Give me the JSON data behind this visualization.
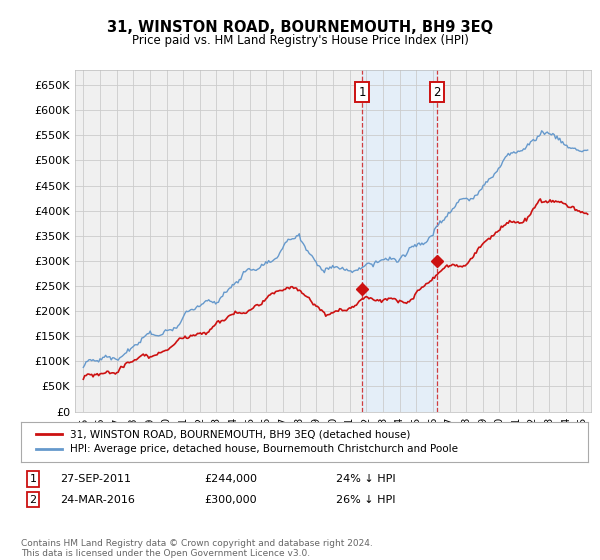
{
  "title": "31, WINSTON ROAD, BOURNEMOUTH, BH9 3EQ",
  "subtitle": "Price paid vs. HM Land Registry's House Price Index (HPI)",
  "ylabel_ticks": [
    "£0",
    "£50K",
    "£100K",
    "£150K",
    "£200K",
    "£250K",
    "£300K",
    "£350K",
    "£400K",
    "£450K",
    "£500K",
    "£550K",
    "£600K",
    "£650K"
  ],
  "ytick_values": [
    0,
    50000,
    100000,
    150000,
    200000,
    250000,
    300000,
    350000,
    400000,
    450000,
    500000,
    550000,
    600000,
    650000
  ],
  "ylim": [
    0,
    680000
  ],
  "xlim_start": 1994.5,
  "xlim_end": 2025.5,
  "hpi_color": "#6699cc",
  "price_color": "#cc1111",
  "sale1_date": 2011.75,
  "sale1_price": 244000,
  "sale1_label": "1",
  "sale2_date": 2016.25,
  "sale2_price": 300000,
  "sale2_label": "2",
  "legend_line1": "31, WINSTON ROAD, BOURNEMOUTH, BH9 3EQ (detached house)",
  "legend_line2": "HPI: Average price, detached house, Bournemouth Christchurch and Poole",
  "table_row1": [
    "1",
    "27-SEP-2011",
    "£244,000",
    "24% ↓ HPI"
  ],
  "table_row2": [
    "2",
    "24-MAR-2016",
    "£300,000",
    "26% ↓ HPI"
  ],
  "footnote": "Contains HM Land Registry data © Crown copyright and database right 2024.\nThis data is licensed under the Open Government Licence v3.0.",
  "background_color": "#ffffff",
  "plot_bg_color": "#f0f0f0",
  "grid_color": "#cccccc",
  "shade_color": "#ddeeff"
}
